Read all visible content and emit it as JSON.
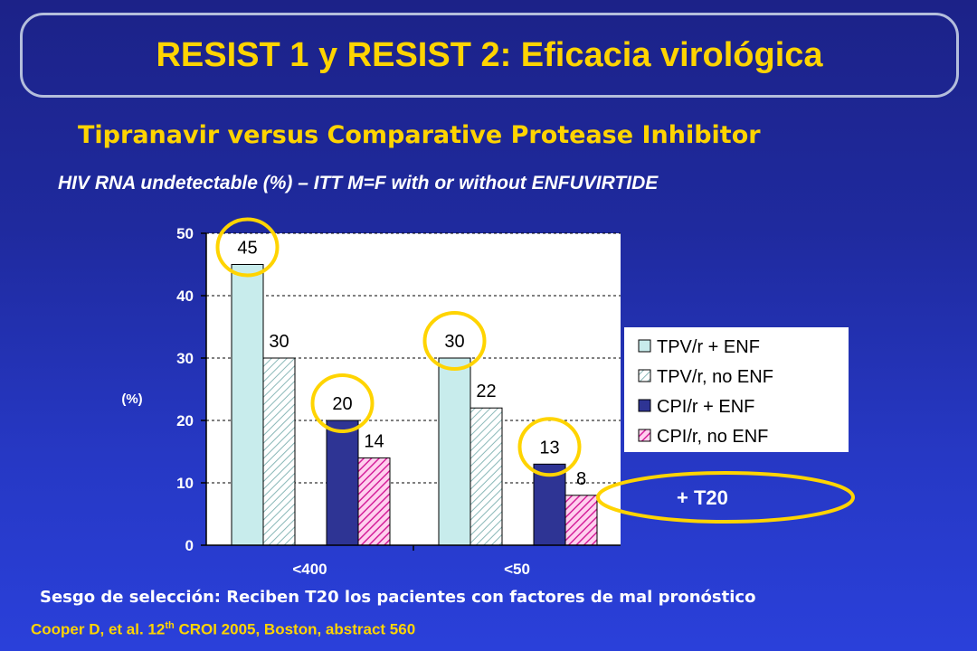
{
  "header": {
    "title": "RESIST 1 y RESIST 2: Eficacia virológica"
  },
  "subtitle": "Tipranavir  versus Comparative Protease Inhibitor",
  "subtitle2": "HIV RNA undetectable (%) – ITT M=F with or without ENFUVIRTIDE",
  "chart_data": {
    "type": "bar",
    "categories": [
      "<400",
      "<50"
    ],
    "series": [
      {
        "name": "TPV/r + ENF",
        "values": [
          45,
          30
        ],
        "color": "#c8ecec",
        "pattern": "solid"
      },
      {
        "name": "TPV/r, no ENF",
        "values": [
          30,
          22
        ],
        "color": "#ffffff",
        "pattern": "hatch-light"
      },
      {
        "name": "CPI/r + ENF",
        "values": [
          20,
          13
        ],
        "color": "#2e3494",
        "pattern": "solid"
      },
      {
        "name": "CPI/r, no ENF",
        "values": [
          14,
          8
        ],
        "color": "#e23aa8",
        "pattern": "hatch-pink"
      }
    ],
    "ylabel": "(%)",
    "ylim": [
      0,
      50
    ],
    "yticks": [
      "0",
      "10",
      "20",
      "30",
      "40",
      "50"
    ],
    "data_labels": [
      [
        "45",
        "30"
      ],
      [
        "30",
        "22"
      ],
      [
        "20",
        "13"
      ],
      [
        "14",
        "8"
      ]
    ],
    "highlighted_values": [
      "45",
      "30",
      "20",
      "13"
    ],
    "grid": true,
    "legend_position": "right"
  },
  "annotation": "+ T20",
  "footnote": "Sesgo de selección: Reciben T20 los pacientes con factores de mal pronóstico",
  "citation": {
    "before": "Cooper D, et al. 12",
    "sup": "th",
    "after": " CROI 2005, Boston, abstract 560"
  },
  "colors": {
    "accent": "#ffd400",
    "background": "#2030b0",
    "plot_bg": "#ffffff"
  }
}
